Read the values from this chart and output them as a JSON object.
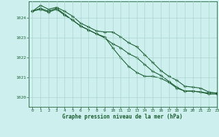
{
  "title": "Graphe pression niveau de la mer (hPa)",
  "background_color": "#cdf0ee",
  "plot_bg_color": "#cdf0ee",
  "grid_color": "#aad4cc",
  "line_color": "#1a5c30",
  "marker_color": "#1a5c30",
  "xlim": [
    -0.5,
    23
  ],
  "ylim": [
    1019.5,
    1024.85
  ],
  "xticks": [
    0,
    1,
    2,
    3,
    4,
    5,
    6,
    7,
    8,
    9,
    10,
    11,
    12,
    13,
    14,
    15,
    16,
    17,
    18,
    19,
    20,
    21,
    22,
    23
  ],
  "yticks": [
    1020,
    1021,
    1022,
    1023,
    1024
  ],
  "series": [
    [
      1024.35,
      1024.65,
      1024.45,
      1024.55,
      1024.35,
      1024.1,
      1023.75,
      1023.55,
      1023.35,
      1023.3,
      1023.3,
      1023.05,
      1022.75,
      1022.55,
      1022.15,
      1021.75,
      1021.35,
      1021.05,
      1020.85,
      1020.55,
      1020.5,
      1020.45,
      1020.25,
      1020.2
    ],
    [
      1024.35,
      1024.5,
      1024.35,
      1024.5,
      1024.2,
      1023.9,
      1023.6,
      1023.4,
      1023.2,
      1023.05,
      1022.5,
      1022.0,
      1021.55,
      1021.25,
      1021.05,
      1021.05,
      1020.95,
      1020.75,
      1020.45,
      1020.3,
      1020.3,
      1020.25,
      1020.2,
      1020.2
    ],
    [
      1024.35,
      1024.45,
      1024.3,
      1024.45,
      1024.15,
      1023.9,
      1023.6,
      1023.4,
      1023.2,
      1023.0,
      1022.7,
      1022.5,
      1022.2,
      1022.0,
      1021.65,
      1021.3,
      1021.1,
      1020.8,
      1020.5,
      1020.3,
      1020.3,
      1020.25,
      1020.15,
      1020.15
    ]
  ]
}
